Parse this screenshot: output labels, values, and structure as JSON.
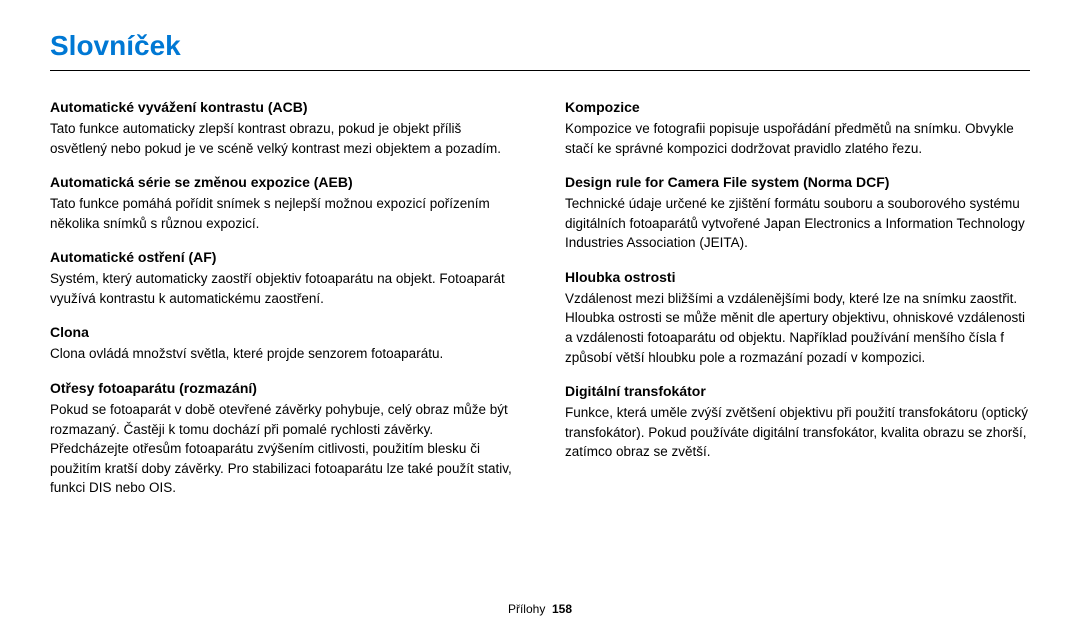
{
  "page_title": "Slovníček",
  "title_color": "#0078d4",
  "text_color": "#000000",
  "background_color": "#ffffff",
  "rule_color": "#000000",
  "fonts": {
    "title_size_pt": 21,
    "term_size_pt": 10.5,
    "body_size_pt": 10,
    "footer_size_pt": 9
  },
  "left_column": [
    {
      "term": "Automatické vyvážení kontrastu (ACB)",
      "def": "Tato funkce automaticky zlepší kontrast obrazu, pokud je objekt příliš osvětlený nebo pokud je ve scéně velký kontrast mezi objektem a pozadím."
    },
    {
      "term": "Automatická série se změnou expozice (AEB)",
      "def": "Tato funkce pomáhá pořídit snímek s nejlepší možnou expozicí pořízením několika snímků s různou expozicí."
    },
    {
      "term": "Automatické ostření (AF)",
      "def": "Systém, který automaticky zaostří objektiv fotoaparátu na objekt. Fotoaparát využívá kontrastu k automatickému zaostření."
    },
    {
      "term": "Clona",
      "def": "Clona ovládá množství světla, které projde senzorem fotoaparátu."
    },
    {
      "term": "Otřesy fotoaparátu (rozmazání)",
      "def": "Pokud se fotoaparát v době otevřené závěrky pohybuje, celý obraz může být rozmazaný. Častěji k tomu dochází při pomalé rychlosti závěrky. Předcházejte otřesům fotoaparátu zvýšením citlivosti, použitím blesku či použitím kratší doby závěrky. Pro stabilizaci fotoaparátu lze také použít stativ, funkci DIS nebo OIS."
    }
  ],
  "right_column": [
    {
      "term": "Kompozice",
      "def": "Kompozice ve fotografii popisuje uspořádání předmětů na snímku. Obvykle stačí ke správné kompozici dodržovat pravidlo zlatého řezu."
    },
    {
      "term": "Design rule for Camera File system (Norma DCF)",
      "def": "Technické údaje určené ke zjištění formátu souboru a souborového systému digitálních fotoaparátů vytvořené Japan Electronics a Information Technology Industries Association (JEITA)."
    },
    {
      "term": "Hloubka ostrosti",
      "def": "Vzdálenost mezi bližšími a vzdálenějšími body, které lze na snímku zaostřit. Hloubka ostrosti se může měnit dle apertury objektivu, ohniskové vzdálenosti a vzdálenosti fotoaparátu od objektu. Například používání menšího čísla f způsobí větší hloubku pole a rozmazání pozadí v kompozici."
    },
    {
      "term": "Digitální transfokátor",
      "def": "Funkce, která uměle zvýší zvětšení objektivu při použití transfokátoru (optický transfokátor). Pokud používáte digitální transfokátor, kvalita obrazu se zhorší, zatímco obraz se zvětší."
    }
  ],
  "footer": {
    "section": "Přílohy",
    "page": "158"
  }
}
